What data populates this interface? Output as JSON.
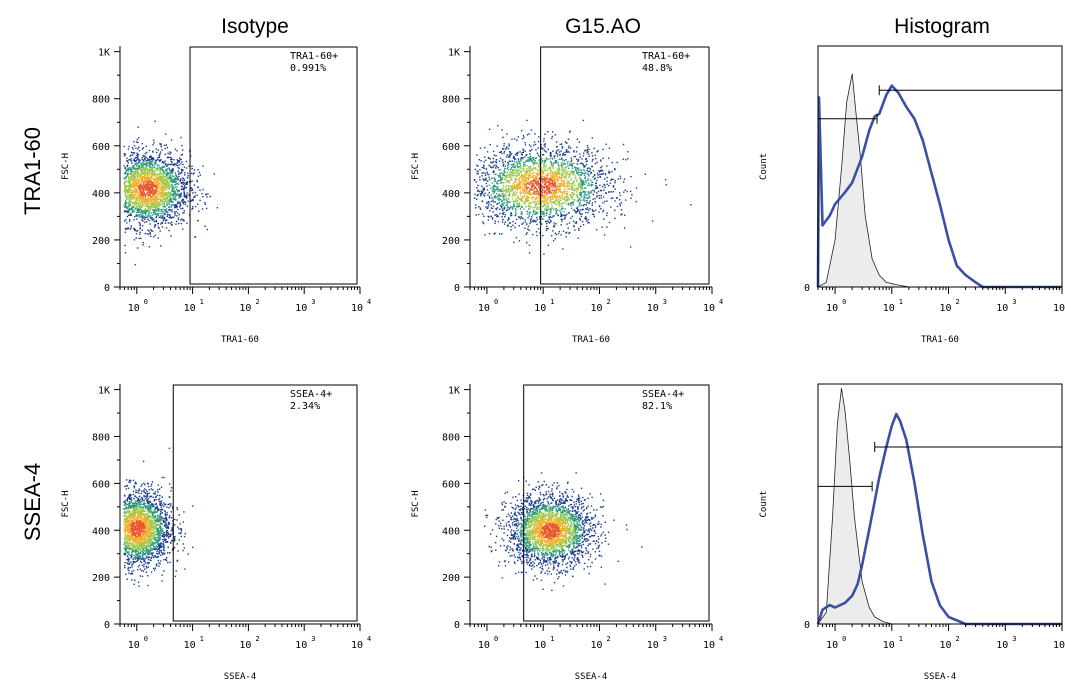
{
  "columns": [
    "Isotype",
    "G15.AO",
    "Histogram"
  ],
  "rows": [
    "TRA1-60",
    "SSEA-4"
  ],
  "chart_data": [
    {
      "type": "scatter",
      "name": "TRA1-60 Isotype",
      "xlabel": "TRA1-60",
      "ylabel": "FSC-H",
      "x_scale": "log",
      "xlim": [
        0.5,
        10000
      ],
      "y_ticks": [
        "0",
        "200",
        "400",
        "600",
        "800",
        "1K"
      ],
      "ylim": [
        0,
        1024
      ],
      "gate": {
        "label": "TRA1-60+",
        "value": "0.991%",
        "x_from": 9
      },
      "population": {
        "x_center": 1.5,
        "x_spread_decades": 0.38,
        "y_center": 420,
        "y_spread": 80
      }
    },
    {
      "type": "scatter",
      "name": "TRA1-60 G15.AO",
      "xlabel": "TRA1-60",
      "ylabel": "FSC-H",
      "x_scale": "log",
      "xlim": [
        0.5,
        10000
      ],
      "y_ticks": [
        "0",
        "200",
        "400",
        "600",
        "800",
        "1K"
      ],
      "ylim": [
        0,
        1024
      ],
      "gate": {
        "label": "TRA1-60+",
        "value": "48.8%",
        "x_from": 9
      },
      "population": {
        "x_center": 9,
        "x_spread_decades": 0.62,
        "y_center": 430,
        "y_spread": 85
      }
    },
    {
      "type": "area",
      "name": "TRA1-60 Histogram",
      "xlabel": "TRA1-60",
      "ylabel": "Count",
      "x_scale": "log",
      "xlim": [
        0.5,
        10000
      ],
      "y_ticks": [
        "0"
      ],
      "series": [
        {
          "role": "isotype",
          "color": "#d0d0d0",
          "x": [
            0.5,
            0.7,
            1,
            1.3,
            1.6,
            2,
            2.3,
            2.8,
            3.4,
            4.5,
            6,
            8,
            12,
            20,
            40
          ],
          "y": [
            0,
            2,
            20,
            50,
            78,
            90,
            75,
            55,
            30,
            12,
            5,
            2,
            1,
            0,
            0
          ]
        },
        {
          "role": "G15.AO",
          "color": "#3a50a3",
          "x": [
            0.5,
            0.52,
            0.6,
            0.8,
            1,
            1.5,
            2,
            3,
            4,
            5,
            6,
            8,
            10,
            13,
            18,
            25,
            35,
            50,
            70,
            100,
            140,
            200,
            300,
            400,
            1000,
            10000
          ],
          "y": [
            0,
            80,
            26,
            30,
            35,
            40,
            44,
            55,
            66,
            72,
            73,
            81,
            85,
            82,
            76,
            71,
            62,
            48,
            35,
            20,
            9,
            5,
            2,
            0,
            0,
            0
          ]
        }
      ],
      "marker": {
        "x_from": 5.5,
        "x_to": 10000
      }
    },
    {
      "type": "scatter",
      "name": "SSEA-4 Isotype",
      "xlabel": "SSEA-4",
      "ylabel": "FSC-H",
      "x_scale": "log",
      "xlim": [
        0.5,
        10000
      ],
      "y_ticks": [
        "0",
        "200",
        "400",
        "600",
        "800",
        "1K"
      ],
      "ylim": [
        0,
        1024
      ],
      "gate": {
        "label": "SSEA-4+",
        "value": "2.34%",
        "x_from": 4.5
      },
      "population": {
        "x_center": 1.0,
        "x_spread_decades": 0.3,
        "y_center": 410,
        "y_spread": 80
      }
    },
    {
      "type": "scatter",
      "name": "SSEA-4 G15.AO",
      "xlabel": "SSEA-4",
      "ylabel": "FSC-H",
      "x_scale": "log",
      "xlim": [
        0.5,
        10000
      ],
      "y_ticks": [
        "0",
        "200",
        "400",
        "600",
        "800",
        "1K"
      ],
      "ylim": [
        0,
        1024
      ],
      "gate": {
        "label": "SSEA-4+",
        "value": "82.1%",
        "x_from": 4.5
      },
      "population": {
        "x_center": 13,
        "x_spread_decades": 0.38,
        "y_center": 400,
        "y_spread": 75
      }
    },
    {
      "type": "area",
      "name": "SSEA-4 Histogram",
      "xlabel": "SSEA-4",
      "ylabel": "Count",
      "x_scale": "log",
      "xlim": [
        0.5,
        10000
      ],
      "y_ticks": [
        "0"
      ],
      "series": [
        {
          "role": "isotype",
          "color": "#d0d0d0",
          "x": [
            0.5,
            0.7,
            0.9,
            1.1,
            1.3,
            1.5,
            1.8,
            2.2,
            3,
            4,
            5,
            7,
            10,
            20
          ],
          "y": [
            0,
            5,
            45,
            85,
            100,
            90,
            70,
            45,
            18,
            7,
            3,
            1,
            0,
            0
          ]
        },
        {
          "role": "G15.AO",
          "color": "#3a50a3",
          "x": [
            0.5,
            0.6,
            0.8,
            1,
            1.5,
            2,
            2.5,
            3,
            4,
            5,
            6,
            8,
            10,
            12,
            14,
            18,
            25,
            35,
            50,
            70,
            100,
            200,
            10000
          ],
          "y": [
            0,
            6,
            8,
            7,
            9,
            12,
            17,
            25,
            40,
            52,
            62,
            75,
            84,
            89,
            86,
            78,
            60,
            38,
            18,
            8,
            3,
            0,
            0
          ]
        }
      ],
      "marker": {
        "x_from": 4.5,
        "x_to": 10000
      }
    }
  ]
}
